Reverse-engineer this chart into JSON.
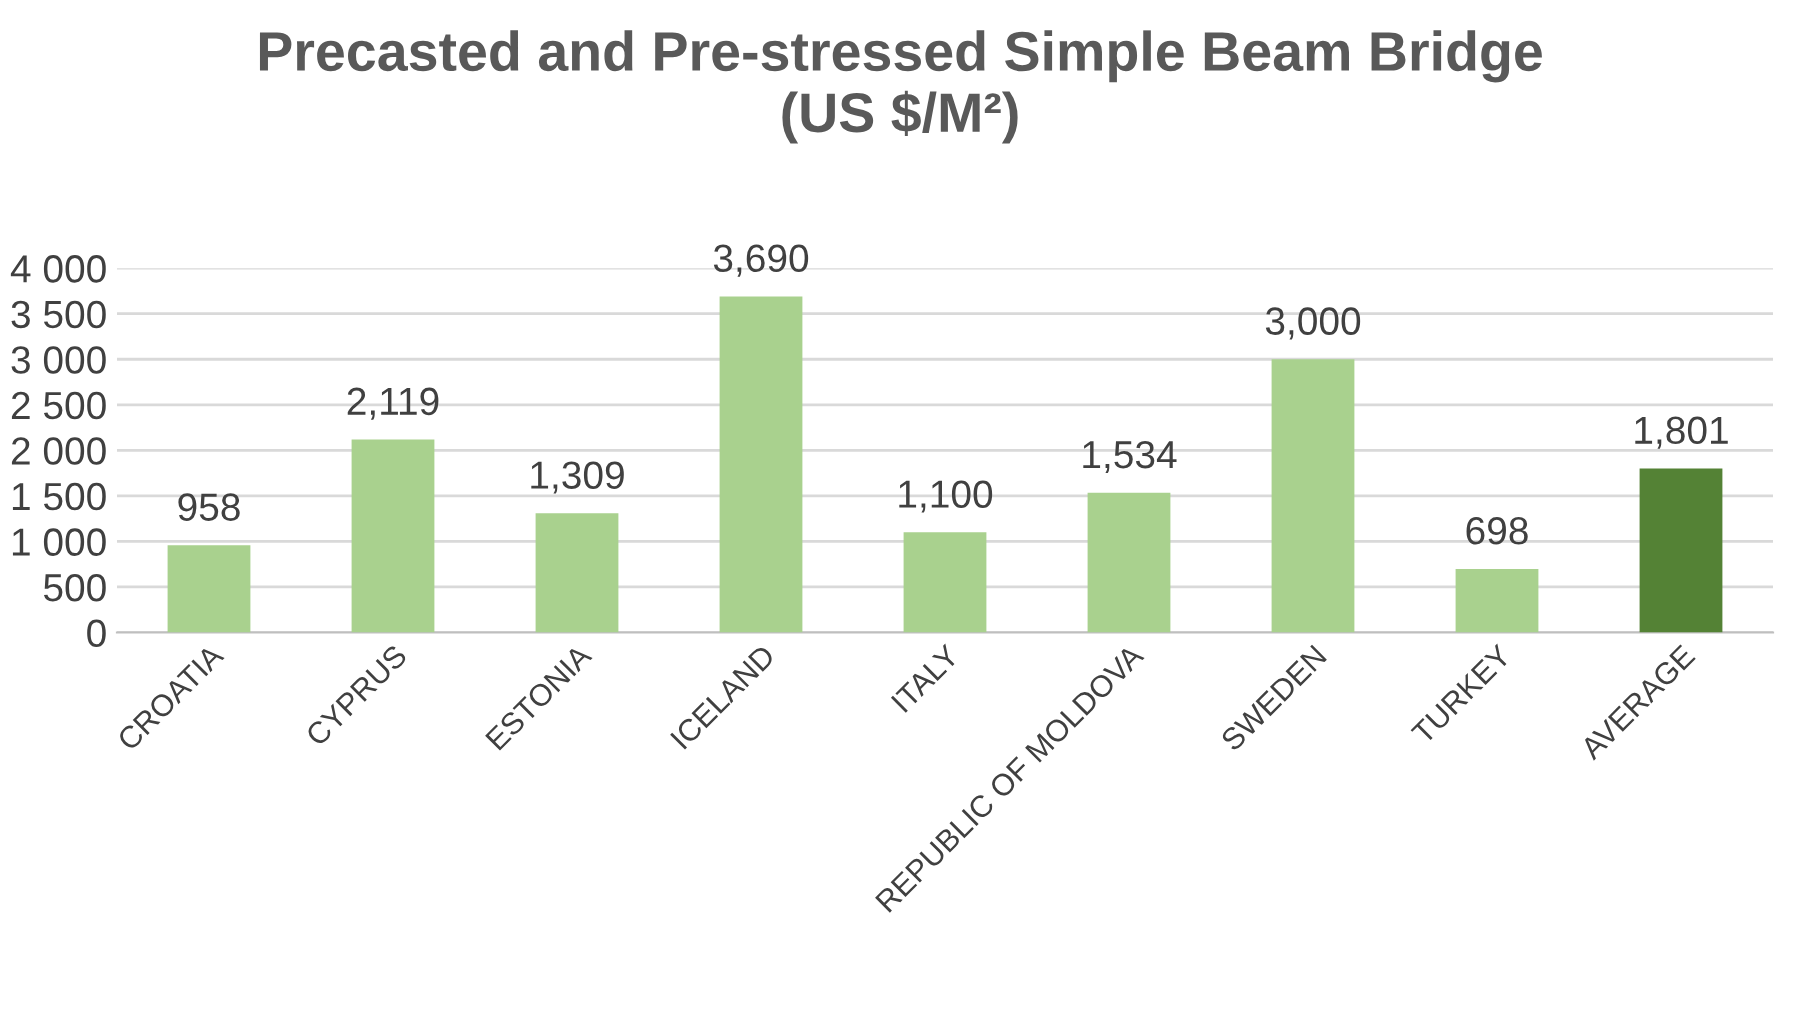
{
  "chart_data": {
    "type": "bar",
    "title": "Precasted and Pre-stressed Simple Beam Bridge\n(US $/M²)",
    "categories": [
      "CROATIA",
      "CYPRUS",
      "ESTONIA",
      "ICELAND",
      "ITALY",
      "REPUBLIC OF MOLDOVA",
      "SWEDEN",
      "TURKEY",
      "AVERAGE"
    ],
    "values": [
      958,
      2119,
      1309,
      3690,
      1100,
      1534,
      3000,
      698,
      1801
    ],
    "colors": [
      "#a9d18e",
      "#a9d18e",
      "#a9d18e",
      "#a9d18e",
      "#a9d18e",
      "#a9d18e",
      "#a9d18e",
      "#a9d18e",
      "#548235"
    ],
    "value_labels": [
      "958",
      "2,119",
      "1,309",
      "3,690",
      "1,100",
      "1,534",
      "3,000",
      "698",
      "1,801"
    ],
    "ylim": [
      0,
      4000
    ],
    "yticks": [
      0,
      {
        "value": 500,
        "label": "500"
      },
      {
        "value": 1000,
        "label": "1 000"
      },
      {
        "value": 1500,
        "label": "1 500"
      },
      {
        "value": 2000,
        "label": "2 000"
      },
      {
        "value": 2500,
        "label": "2 500"
      },
      {
        "value": 3000,
        "label": "3 000"
      },
      {
        "value": 3500,
        "label": "3 500"
      },
      {
        "value": 4000,
        "label": "4 000"
      }
    ],
    "grid": "y"
  }
}
